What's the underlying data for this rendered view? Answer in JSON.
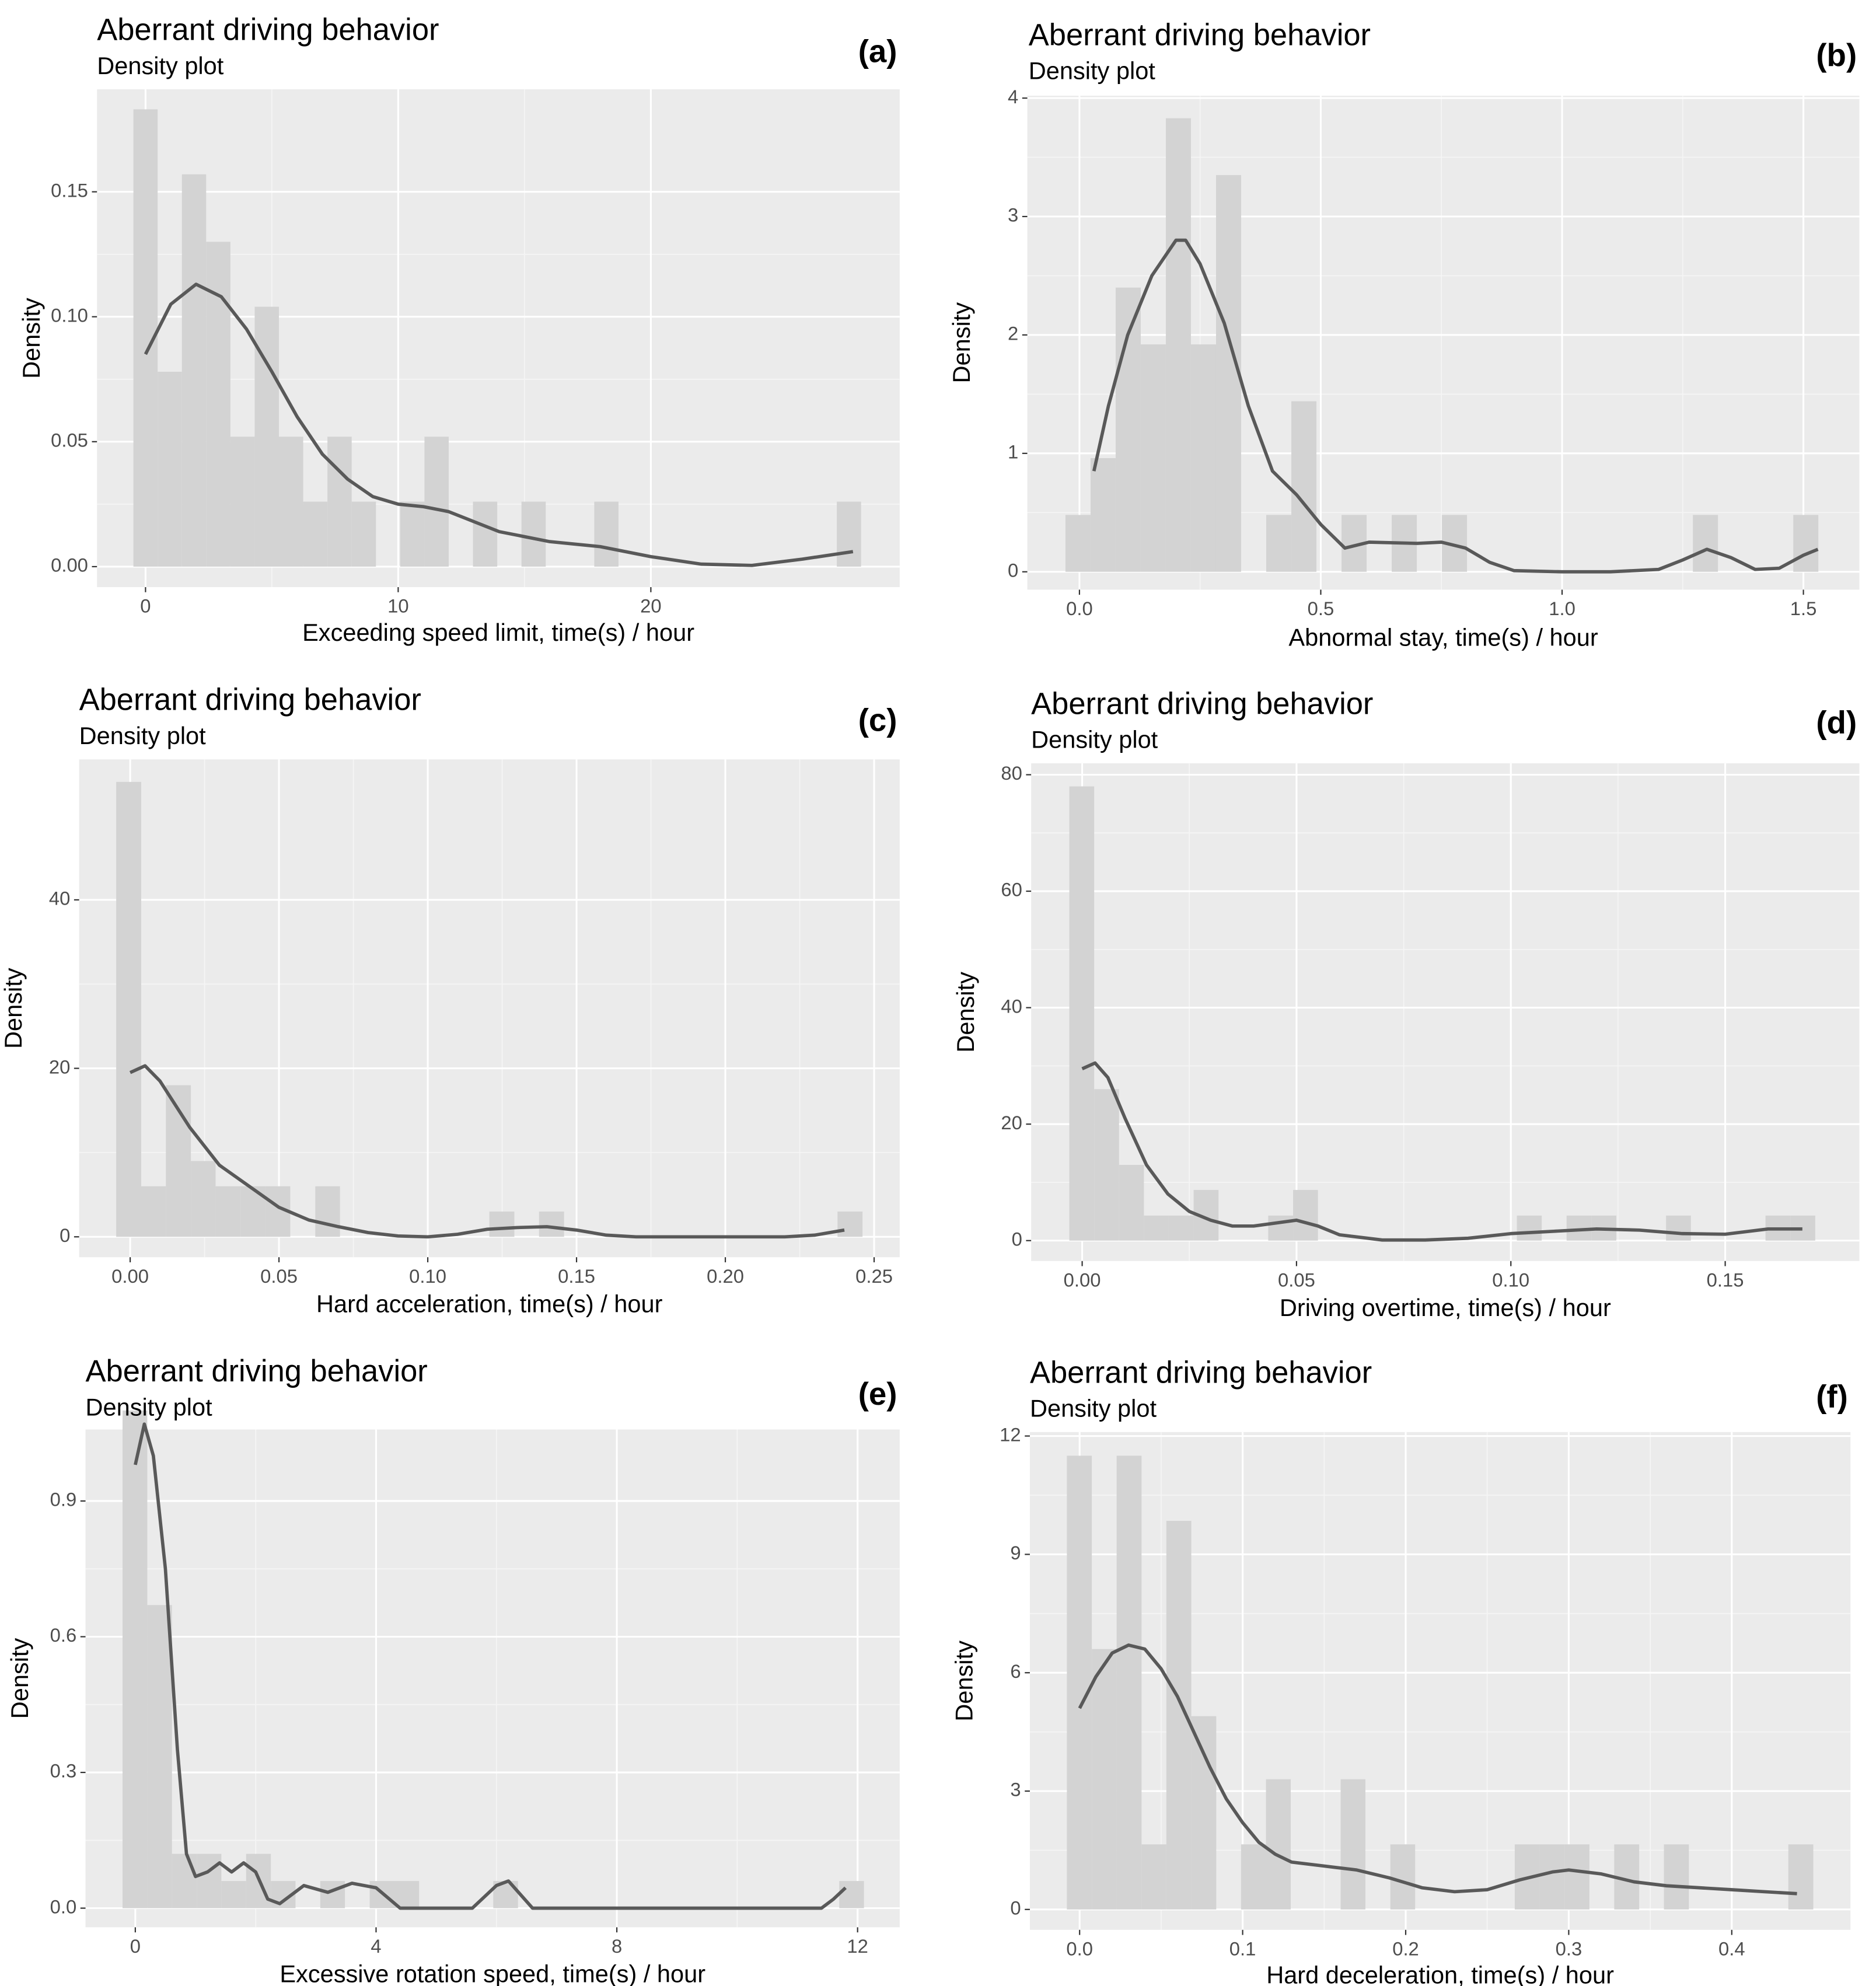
{
  "chart_data": [
    {
      "type": "histogram",
      "title": "Aberrant driving behavior",
      "subtitle": "Density plot",
      "annotation": "(a)",
      "x_label": "Exceeding speed limit, time(s) / hour",
      "y_label": "Density",
      "color": "#d3d3d3",
      "line_color": "#595959",
      "grid": true,
      "bins": [
        -0.48,
        0.48,
        1.44,
        2.4,
        3.36,
        4.32,
        5.28,
        6.24,
        7.2,
        8.16,
        9.12,
        10.08,
        11.04,
        12,
        12.96,
        13.92,
        14.88,
        15.84,
        16.8,
        17.76,
        18.72,
        19.68,
        20.64,
        21.6,
        22.56,
        23.52,
        24.48,
        25.44,
        26.4,
        27.36,
        28.32
      ],
      "counts": [
        0.183,
        0.078,
        0.157,
        0.13,
        0.052,
        0.104,
        0.052,
        0.026,
        0.052,
        0.026,
        0,
        0.026,
        0.052,
        0,
        0.026,
        0,
        0.026,
        0,
        0,
        0.026,
        0,
        0,
        0,
        0,
        0,
        0,
        0,
        0,
        0,
        0.026
      ],
      "density": {
        "x": [
          0,
          1,
          2,
          3,
          4,
          5,
          6,
          7,
          8,
          9,
          10,
          11,
          12,
          13,
          14,
          15,
          16,
          18,
          20,
          22,
          24,
          26,
          28
        ],
        "values": [
          0.085,
          0.105,
          0.113,
          0.108,
          0.095,
          0.078,
          0.06,
          0.045,
          0.035,
          0.028,
          0.025,
          0.024,
          0.022,
          0.018,
          0.014,
          0.012,
          0.01,
          0.008,
          0.004,
          0.001,
          0.0005,
          0.003,
          0.006
        ]
      },
      "xlim": [
        -1.92,
        29.85
      ],
      "ylim": [
        -0.0082,
        0.191
      ],
      "xticks": [
        0,
        10,
        20
      ],
      "yticks": [
        {
          "value": 0,
          "label": "0.00"
        },
        0.05,
        {
          "value": 0.1,
          "label": "0.10"
        },
        0.15
      ]
    },
    {
      "type": "histogram",
      "title": "Aberrant driving behavior",
      "subtitle": "Density plot",
      "annotation": "(b)",
      "x_label": "Abnormal stay, time(s) / hour",
      "y_label": "Density",
      "color": "#d3d3d3",
      "line_color": "#595959",
      "grid": true,
      "bins": [
        -0.029,
        0.023,
        0.075,
        0.127,
        0.179,
        0.231,
        0.283,
        0.335,
        0.387,
        0.439,
        0.491,
        0.543,
        0.595,
        0.647,
        0.699,
        0.751,
        0.803,
        0.855,
        0.907,
        0.959,
        1.011,
        1.063,
        1.115,
        1.167,
        1.219,
        1.271,
        1.323,
        1.375,
        1.427,
        1.479,
        1.531
      ],
      "counts": [
        0.48,
        0.96,
        2.4,
        1.92,
        3.83,
        1.92,
        3.35,
        0,
        0.48,
        1.44,
        0,
        0.48,
        0,
        0.48,
        0,
        0.48,
        0,
        0,
        0,
        0,
        0,
        0,
        0,
        0,
        0,
        0.48,
        0,
        0,
        0,
        0.48
      ],
      "density": {
        "x": [
          0.03,
          0.06,
          0.1,
          0.15,
          0.2,
          0.22,
          0.25,
          0.3,
          0.35,
          0.4,
          0.45,
          0.5,
          0.55,
          0.6,
          0.7,
          0.75,
          0.8,
          0.85,
          0.9,
          1.0,
          1.1,
          1.2,
          1.25,
          1.3,
          1.35,
          1.4,
          1.45,
          1.5,
          1.53
        ],
        "values": [
          0.85,
          1.4,
          2.0,
          2.5,
          2.8,
          2.8,
          2.6,
          2.1,
          1.4,
          0.85,
          0.65,
          0.4,
          0.2,
          0.25,
          0.24,
          0.25,
          0.2,
          0.08,
          0.01,
          0,
          0,
          0.02,
          0.1,
          0.19,
          0.12,
          0.02,
          0.03,
          0.14,
          0.19
        ]
      },
      "xlim": [
        -0.108,
        1.616
      ],
      "ylim": [
        -0.151,
        4.02
      ],
      "xticks": [
        {
          "value": 0,
          "label": "0.0"
        },
        0.5,
        {
          "value": 1,
          "label": "1.0"
        },
        1.5
      ],
      "yticks": [
        0,
        1,
        2,
        3,
        4
      ]
    },
    {
      "type": "histogram",
      "title": "Aberrant driving behavior",
      "subtitle": "Density plot",
      "annotation": "(c)",
      "x_label": "Hard acceleration, time(s) / hour",
      "y_label": "Density",
      "color": "#d3d3d3",
      "line_color": "#595959",
      "grid": true,
      "bins": [
        -0.0047,
        0.0037,
        0.012,
        0.0204,
        0.0287,
        0.0371,
        0.0455,
        0.0538,
        0.0622,
        0.0705,
        0.0789,
        0.0873,
        0.0956,
        0.104,
        0.1123,
        0.1207,
        0.1291,
        0.1374,
        0.1458,
        0.1541,
        0.1625,
        0.1709,
        0.1792,
        0.1876,
        0.1959,
        0.2043,
        0.2127,
        0.221,
        0.2294,
        0.2377,
        0.2461
      ],
      "counts": [
        54,
        6,
        18,
        9,
        6,
        6,
        6,
        0,
        6,
        0,
        0,
        0,
        0,
        0,
        0,
        3,
        0,
        3,
        0,
        0,
        0,
        0,
        0,
        0,
        0,
        0,
        0,
        0,
        0,
        3
      ],
      "density": {
        "x": [
          0,
          0.005,
          0.01,
          0.02,
          0.03,
          0.04,
          0.05,
          0.06,
          0.07,
          0.08,
          0.09,
          0.1,
          0.11,
          0.12,
          0.13,
          0.14,
          0.15,
          0.16,
          0.17,
          0.2,
          0.22,
          0.23,
          0.24
        ],
        "values": [
          19.5,
          20.3,
          18.5,
          13,
          8.5,
          6,
          3.5,
          2,
          1.2,
          0.5,
          0.1,
          0,
          0.3,
          0.9,
          1.1,
          1.2,
          0.8,
          0.2,
          0,
          0,
          0,
          0.2,
          0.8
        ]
      },
      "xlim": [
        -0.01715,
        0.2586
      ],
      "ylim": [
        -2.42,
        56.67
      ],
      "xticks": [
        {
          "value": 0,
          "label": "0.00"
        },
        0.05,
        {
          "value": 0.1,
          "label": "0.10"
        },
        0.15,
        {
          "value": 0.2,
          "label": "0.20"
        },
        0.25
      ],
      "yticks": [
        0,
        20,
        40
      ]
    },
    {
      "type": "histogram",
      "title": "Aberrant driving behavior",
      "subtitle": "Density plot",
      "annotation": "(d)",
      "x_label": "Driving overtime, time(s) / hour",
      "y_label": "Density",
      "color": "#d3d3d3",
      "line_color": "#595959",
      "grid": true,
      "bins": [
        -0.003,
        0.0028,
        0.0086,
        0.0144,
        0.0202,
        0.026,
        0.0318,
        0.0376,
        0.0434,
        0.0492,
        0.055,
        0.0608,
        0.0666,
        0.0724,
        0.0782,
        0.084,
        0.0898,
        0.0956,
        0.1014,
        0.1072,
        0.113,
        0.1188,
        0.1246,
        0.1304,
        0.1362,
        0.142,
        0.1478,
        0.1536,
        0.1594,
        0.1652,
        0.171
      ],
      "counts": [
        78,
        26,
        13,
        4.3,
        4.3,
        8.7,
        0,
        0,
        4.3,
        8.7,
        0,
        0,
        0,
        0,
        0,
        0,
        0,
        0,
        4.3,
        0,
        4.3,
        4.3,
        0,
        0,
        4.3,
        0,
        0,
        0,
        4.3,
        4.3
      ],
      "density": {
        "x": [
          0,
          0.003,
          0.006,
          0.01,
          0.015,
          0.02,
          0.025,
          0.03,
          0.035,
          0.04,
          0.05,
          0.055,
          0.06,
          0.07,
          0.08,
          0.09,
          0.1,
          0.11,
          0.12,
          0.13,
          0.14,
          0.15,
          0.16,
          0.168
        ],
        "values": [
          29.5,
          30.5,
          28,
          21,
          13,
          8,
          5,
          3.5,
          2.5,
          2.5,
          3.5,
          2.5,
          1,
          0.1,
          0.1,
          0.4,
          1.2,
          1.6,
          2,
          1.8,
          1.2,
          1.1,
          2,
          2
        ]
      },
      "xlim": [
        -0.0119,
        0.1813
      ],
      "ylim": [
        -3.51,
        81.97
      ],
      "xticks": [
        {
          "value": 0,
          "label": "0.00"
        },
        0.05,
        {
          "value": 0.1,
          "label": "0.10"
        },
        0.15
      ],
      "yticks": [
        0,
        20,
        40,
        60,
        80
      ]
    },
    {
      "type": "histogram",
      "title": "Aberrant driving behavior",
      "subtitle": "Density plot",
      "annotation": "(e)",
      "x_label": "Excessive rotation speed, time(s) / hour",
      "y_label": "Density",
      "color": "#d3d3d3",
      "line_color": "#595959",
      "grid": true,
      "bins": [
        -0.212,
        0.199,
        0.609,
        1.02,
        1.43,
        1.841,
        2.252,
        2.662,
        3.073,
        3.483,
        3.894,
        4.305,
        4.715,
        5.126,
        5.536,
        5.947,
        6.358,
        6.768,
        7.179,
        7.589,
        8,
        8.411,
        8.821,
        9.232,
        9.642,
        10.053,
        10.464,
        10.874,
        11.285,
        11.695,
        12.106
      ],
      "counts": [
        1.1,
        0.67,
        0.12,
        0.12,
        0.06,
        0.12,
        0.06,
        0,
        0.06,
        0,
        0.06,
        0.06,
        0,
        0,
        0,
        0.06,
        0,
        0,
        0,
        0,
        0,
        0,
        0,
        0,
        0,
        0,
        0,
        0,
        0,
        0.06
      ],
      "density": {
        "x": [
          0,
          0.15,
          0.3,
          0.5,
          0.7,
          0.85,
          1.0,
          1.2,
          1.4,
          1.6,
          1.8,
          2.0,
          2.2,
          2.4,
          2.8,
          3.2,
          3.6,
          4.0,
          4.4,
          5,
          5.6,
          6.0,
          6.2,
          6.6,
          8,
          10,
          11.4,
          11.6,
          11.8
        ],
        "values": [
          0.98,
          1.07,
          1.0,
          0.75,
          0.35,
          0.12,
          0.07,
          0.08,
          0.1,
          0.08,
          0.1,
          0.08,
          0.02,
          0.01,
          0.05,
          0.035,
          0.055,
          0.045,
          0,
          0,
          0,
          0.05,
          0.06,
          0,
          0,
          0,
          0,
          0.02,
          0.045
        ]
      },
      "xlim": [
        -0.827,
        12.7
      ],
      "ylim": [
        -0.0423,
        1.058
      ],
      "xticks": [
        0,
        4,
        8,
        12
      ],
      "yticks": [
        {
          "value": 0,
          "label": "0.0"
        },
        0.3,
        0.6,
        0.9
      ]
    },
    {
      "type": "histogram",
      "title": "Aberrant driving behavior",
      "subtitle": "Density plot",
      "annotation": "(f)",
      "x_label": "Hard deceleration, time(s) / hour",
      "y_label": "Density",
      "color": "#d3d3d3",
      "line_color": "#595959",
      "grid": true,
      "bins": [
        -0.0078,
        0.0075,
        0.0227,
        0.038,
        0.0532,
        0.0685,
        0.0838,
        0.099,
        0.1143,
        0.1295,
        0.1448,
        0.1601,
        0.1753,
        0.1906,
        0.2058,
        0.2211,
        0.2364,
        0.2516,
        0.2669,
        0.2821,
        0.2974,
        0.3127,
        0.3279,
        0.3432,
        0.3584,
        0.3737,
        0.389,
        0.4042,
        0.4195,
        0.4347,
        0.45
      ],
      "counts": [
        11.5,
        6.6,
        11.5,
        1.65,
        9.85,
        4.9,
        0,
        1.65,
        3.3,
        0,
        0,
        3.3,
        0,
        1.65,
        0,
        0,
        0,
        0,
        1.65,
        1.65,
        1.65,
        0,
        1.65,
        0,
        1.65,
        0,
        0,
        0,
        0,
        1.65
      ],
      "density": {
        "x": [
          0,
          0.01,
          0.02,
          0.03,
          0.04,
          0.05,
          0.06,
          0.07,
          0.08,
          0.09,
          0.1,
          0.11,
          0.12,
          0.13,
          0.15,
          0.17,
          0.19,
          0.21,
          0.23,
          0.25,
          0.27,
          0.29,
          0.3,
          0.32,
          0.34,
          0.36,
          0.38,
          0.4,
          0.42,
          0.44
        ],
        "values": [
          5.1,
          5.9,
          6.5,
          6.7,
          6.6,
          6.1,
          5.4,
          4.5,
          3.6,
          2.8,
          2.2,
          1.7,
          1.4,
          1.2,
          1.1,
          1.0,
          0.8,
          0.55,
          0.45,
          0.5,
          0.75,
          0.95,
          1.0,
          0.9,
          0.7,
          0.6,
          0.55,
          0.5,
          0.45,
          0.4
        ]
      },
      "xlim": [
        -0.0305,
        0.4728
      ],
      "ylim": [
        -0.517,
        12.1
      ],
      "xticks": [
        {
          "value": 0,
          "label": "0.0"
        },
        0.1,
        0.2,
        0.3,
        0.4
      ],
      "yticks": [
        0,
        3,
        6,
        9,
        12
      ]
    }
  ]
}
